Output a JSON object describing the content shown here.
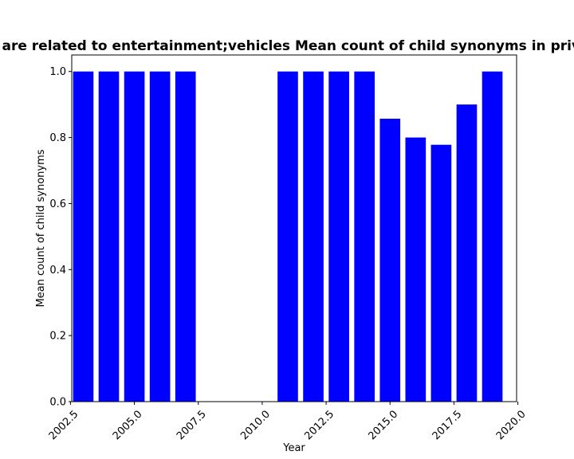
{
  "chart_data": {
    "type": "bar",
    "title": "s are related to entertainment;vehicles Mean count of child synonyms in privac",
    "xlabel": "Year",
    "ylabel": "Mean count of child synonyms",
    "bar_color": "#0000ff",
    "bar_width": 0.8,
    "x": [
      2003,
      2004,
      2005,
      2006,
      2007,
      2011,
      2012,
      2013,
      2014,
      2015,
      2016,
      2017,
      2018,
      2019
    ],
    "values": [
      1.0,
      1.0,
      1.0,
      1.0,
      1.0,
      1.0,
      1.0,
      1.0,
      1.0,
      0.857,
      0.8,
      0.778,
      0.9,
      1.0
    ],
    "xlim": [
      2002.55,
      2019.95
    ],
    "ylim": [
      0,
      1.05
    ],
    "xticks": [
      2002.5,
      2005.0,
      2007.5,
      2010.0,
      2012.5,
      2015.0,
      2017.5,
      2020.0
    ],
    "xtick_labels": [
      "2002.5",
      "2005.0",
      "2007.5",
      "2010.0",
      "2012.5",
      "2015.0",
      "2017.5",
      "2020.0"
    ],
    "yticks": [
      0.0,
      0.2,
      0.4,
      0.6,
      0.8,
      1.0
    ],
    "ytick_labels": [
      "0.0",
      "0.2",
      "0.4",
      "0.6",
      "0.8",
      "1.0"
    ],
    "grid": false,
    "legend": false
  }
}
